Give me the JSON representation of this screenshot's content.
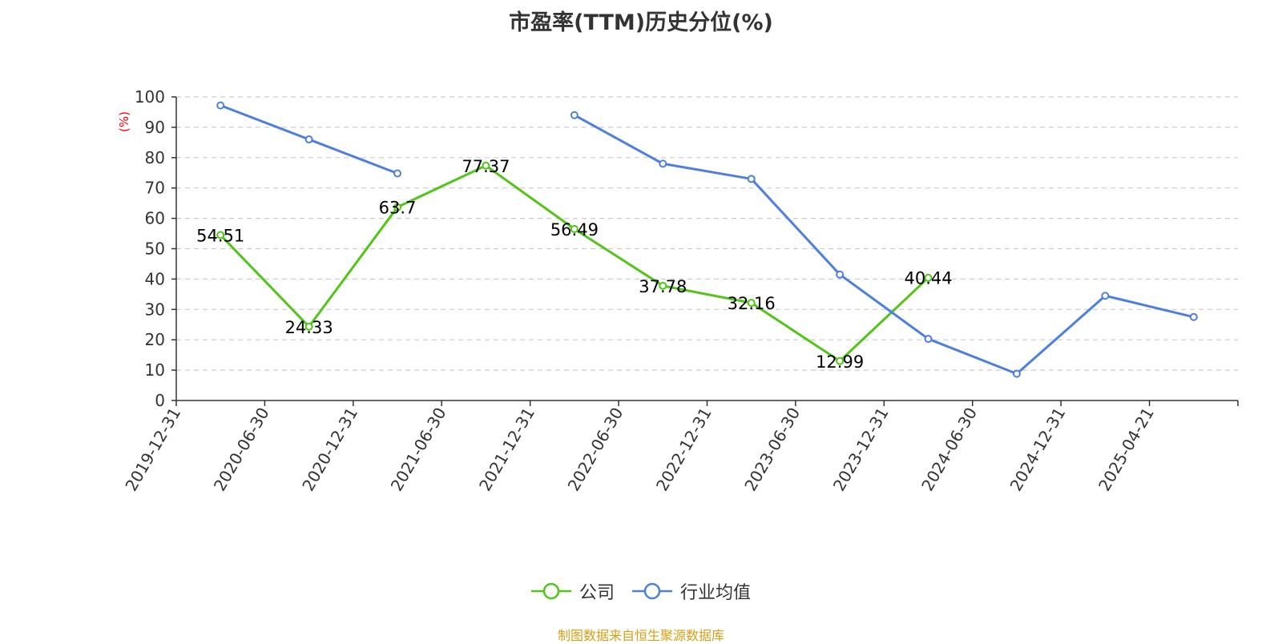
{
  "chart_data": {
    "type": "line",
    "title": "市盈率(TTM)历史分位(%)",
    "ylabel": "(%)",
    "ylim": [
      0,
      100
    ],
    "yticks": [
      0,
      10,
      20,
      30,
      40,
      50,
      60,
      70,
      80,
      90,
      100
    ],
    "grid": true,
    "legend_position": "bottom",
    "categories": [
      "2019-12-31",
      "2020-06-30",
      "2020-12-31",
      "2021-06-30",
      "2021-12-31",
      "2022-06-30",
      "2022-12-31",
      "2023-06-30",
      "2023-12-31",
      "2024-06-30",
      "2024-12-31",
      "2025-04-21"
    ],
    "series": [
      {
        "name": "公司",
        "color": "#52c41a",
        "values": [
          54.51,
          24.33,
          63.7,
          77.37,
          56.49,
          37.78,
          32.16,
          12.99,
          40.44,
          null,
          null,
          null
        ],
        "labels": [
          "54.51",
          "24.33",
          "63.7",
          "77.37",
          "56.49",
          "37.78",
          "32.16",
          "12.99",
          "40.44",
          null,
          null,
          null
        ]
      },
      {
        "name": "行业均值",
        "color": "#4e7fdf",
        "values": [
          97.2,
          86.0,
          74.8,
          null,
          94.0,
          78.0,
          73.0,
          41.5,
          20.3,
          8.8,
          34.5,
          27.5
        ]
      }
    ],
    "source_note": "制图数据来自恒生聚源数据库"
  }
}
